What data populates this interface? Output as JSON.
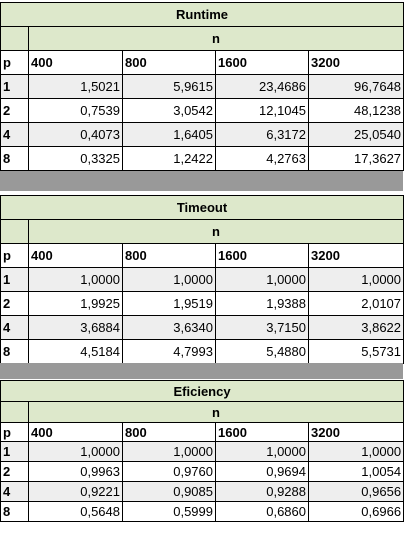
{
  "tables": [
    {
      "title": "Runtime",
      "n_label": "n",
      "p_label": "p",
      "columns": [
        "400",
        "800",
        "1600",
        "3200"
      ],
      "rows": [
        {
          "p": "1",
          "values": [
            "1,5021",
            "5,9615",
            "23,4686",
            "96,7648"
          ]
        },
        {
          "p": "2",
          "values": [
            "0,7539",
            "3,0542",
            "12,1045",
            "48,1238"
          ]
        },
        {
          "p": "4",
          "values": [
            "0,4073",
            "1,6405",
            "6,3172",
            "25,0540"
          ]
        },
        {
          "p": "8",
          "values": [
            "0,3325",
            "1,2422",
            "4,2763",
            "17,3627"
          ]
        }
      ]
    },
    {
      "title": "Timeout",
      "n_label": "n",
      "p_label": "p",
      "columns": [
        "400",
        "800",
        "1600",
        "3200"
      ],
      "rows": [
        {
          "p": "1",
          "values": [
            "1,0000",
            "1,0000",
            "1,0000",
            "1,0000"
          ]
        },
        {
          "p": "2",
          "values": [
            "1,9925",
            "1,9519",
            "1,9388",
            "2,0107"
          ]
        },
        {
          "p": "4",
          "values": [
            "3,6884",
            "3,6340",
            "3,7150",
            "3,8622"
          ]
        },
        {
          "p": "8",
          "values": [
            "4,5184",
            "4,7993",
            "5,4880",
            "5,5731"
          ]
        }
      ]
    },
    {
      "title": "Eficiency",
      "n_label": "n",
      "p_label": "p",
      "columns": [
        "400",
        "800",
        "1600",
        "3200"
      ],
      "rows": [
        {
          "p": "1",
          "values": [
            "1,0000",
            "1,0000",
            "1,0000",
            "1,0000"
          ]
        },
        {
          "p": "2",
          "values": [
            "0,9963",
            "0,9760",
            "0,9694",
            "1,0054"
          ]
        },
        {
          "p": "4",
          "values": [
            "0,9221",
            "0,9085",
            "0,9288",
            "0,9656"
          ]
        },
        {
          "p": "8",
          "values": [
            "0,5648",
            "0,5999",
            "0,6860",
            "0,6966"
          ]
        }
      ]
    }
  ]
}
